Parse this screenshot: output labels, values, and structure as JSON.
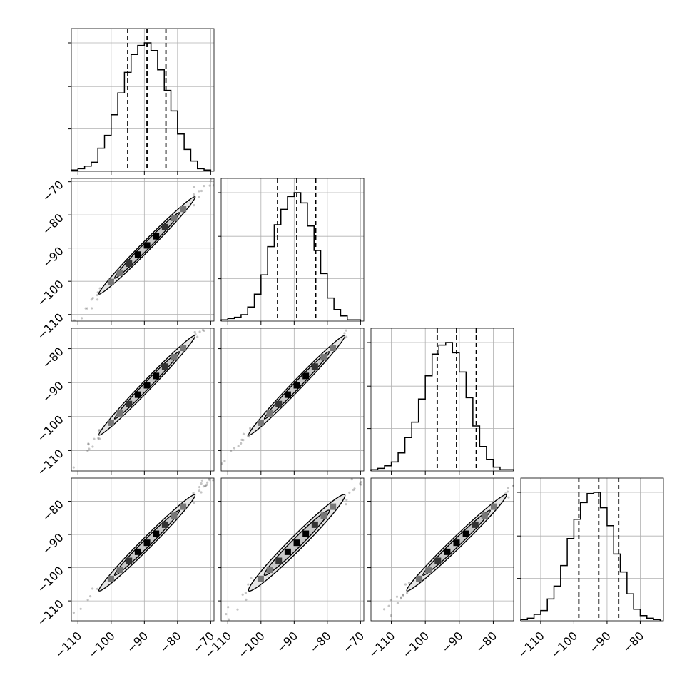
{
  "chart_data": {
    "type": "corner",
    "n_params": 4,
    "grid": true,
    "axis_ranges": [
      [
        -112,
        -69
      ],
      [
        -112,
        -69
      ],
      [
        -116,
        -74
      ],
      [
        -116,
        -73
      ]
    ],
    "diag_ticks": [
      [],
      [],
      [],
      [
        -110,
        -100,
        -90,
        -80
      ]
    ],
    "row_ticks": [
      [],
      [
        -110,
        -100,
        -90,
        -80,
        -70
      ],
      [
        -110,
        -100,
        -90,
        -80
      ],
      [
        -110,
        -100,
        -90,
        -80
      ]
    ],
    "col_ticks": [
      [
        -110,
        -100,
        -90,
        -80,
        -70
      ],
      [
        -110,
        -100,
        -90,
        -80,
        -70
      ],
      [
        -110,
        -100,
        -90,
        -80
      ],
      [
        -110,
        -100,
        -90,
        -80
      ]
    ],
    "row_tick_labels": [
      [],
      [
        "−110",
        "−100",
        "−90",
        "−80",
        "−70"
      ],
      [
        "−110",
        "−100",
        "−90",
        "−80"
      ],
      [
        "−110",
        "−100",
        "−90",
        "−80"
      ]
    ],
    "col_tick_labels": [
      [
        "−110",
        "−100",
        "−90",
        "−80",
        "−70"
      ],
      [
        "−110",
        "−100",
        "−90",
        "−80",
        "−70"
      ],
      [
        "−110",
        "−100",
        "−90",
        "−80"
      ],
      [
        "−110",
        "−100",
        "−90",
        "−80"
      ]
    ],
    "quantiles": [
      [
        -95.0,
        -89.2,
        -83.5
      ],
      [
        -95.0,
        -89.2,
        -83.5
      ],
      [
        -96.5,
        -90.8,
        -85.0
      ],
      [
        -98.5,
        -92.5,
        -86.5
      ]
    ],
    "histograms": [
      {
        "bin_edges": [
          -112,
          -110,
          -108,
          -106,
          -104,
          -102,
          -100,
          -98,
          -96,
          -94,
          -92,
          -90,
          -88,
          -86,
          -84,
          -82,
          -80,
          -78,
          -76,
          -74,
          -72,
          -70
        ],
        "counts": [
          0.01,
          0.02,
          0.04,
          0.07,
          0.18,
          0.28,
          0.44,
          0.61,
          0.77,
          0.91,
          0.98,
          1.0,
          0.94,
          0.79,
          0.63,
          0.47,
          0.29,
          0.17,
          0.08,
          0.02,
          0.01
        ]
      },
      {
        "bin_edges": [
          -112,
          -110,
          -108,
          -106,
          -104,
          -102,
          -100,
          -98,
          -96,
          -94,
          -92,
          -90,
          -88,
          -86,
          -84,
          -82,
          -80,
          -78,
          -76,
          -74,
          -72,
          -70
        ],
        "counts": [
          0.01,
          0.02,
          0.03,
          0.05,
          0.11,
          0.21,
          0.36,
          0.58,
          0.75,
          0.87,
          0.97,
          1.0,
          0.92,
          0.74,
          0.55,
          0.37,
          0.18,
          0.09,
          0.04,
          0.01,
          0.01
        ]
      },
      {
        "bin_edges": [
          -116,
          -114,
          -112,
          -110,
          -108,
          -106,
          -104,
          -102,
          -100,
          -98,
          -96,
          -94,
          -92,
          -90,
          -88,
          -86,
          -84,
          -82,
          -80,
          -78,
          -76,
          -74
        ],
        "counts": [
          0.01,
          0.02,
          0.04,
          0.07,
          0.14,
          0.26,
          0.38,
          0.56,
          0.74,
          0.91,
          0.98,
          1.0,
          0.92,
          0.77,
          0.57,
          0.35,
          0.19,
          0.09,
          0.03,
          0.01,
          0.01
        ]
      },
      {
        "bin_edges": [
          -116,
          -114,
          -112,
          -110,
          -108,
          -106,
          -104,
          -102,
          -100,
          -98,
          -96,
          -94,
          -92,
          -90,
          -88,
          -86,
          -84,
          -82,
          -80,
          -78,
          -76,
          -74
        ],
        "counts": [
          0.01,
          0.02,
          0.05,
          0.08,
          0.17,
          0.27,
          0.43,
          0.64,
          0.79,
          0.92,
          0.99,
          1.0,
          0.88,
          0.74,
          0.52,
          0.38,
          0.21,
          0.09,
          0.04,
          0.02,
          0.01
        ]
      }
    ],
    "scatter_panels": [
      {
        "row": 1,
        "col": 0,
        "center": [
          -89.2,
          -89.2
        ],
        "spread": [
          8.5,
          8.6
        ],
        "corr": 0.993
      },
      {
        "row": 2,
        "col": 0,
        "center": [
          -89.2,
          -90.8
        ],
        "spread": [
          8.5,
          8.6
        ],
        "corr": 0.993
      },
      {
        "row": 2,
        "col": 1,
        "center": [
          -89.2,
          -90.8
        ],
        "spread": [
          8.5,
          8.6
        ],
        "corr": 0.993
      },
      {
        "row": 3,
        "col": 0,
        "center": [
          -89.2,
          -92.5
        ],
        "spread": [
          8.5,
          8.5
        ],
        "corr": 0.991
      },
      {
        "row": 3,
        "col": 1,
        "center": [
          -89.2,
          -92.5
        ],
        "spread": [
          8.5,
          8.5
        ],
        "corr": 0.985
      },
      {
        "row": 3,
        "col": 2,
        "center": [
          -90.8,
          -92.5
        ],
        "spread": [
          8.6,
          8.5
        ],
        "corr": 0.991
      }
    ]
  }
}
